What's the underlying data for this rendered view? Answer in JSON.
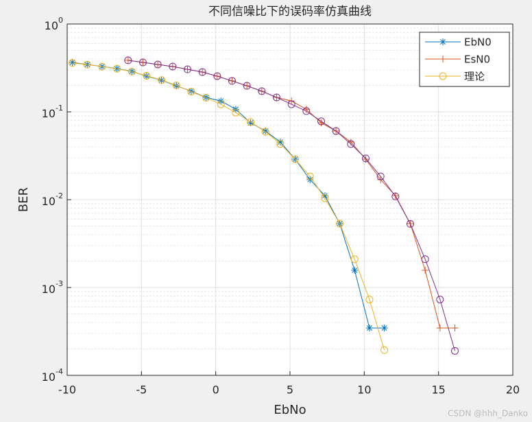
{
  "chart_data": {
    "type": "line",
    "title": "不同信噪比下的误码率仿真曲线",
    "xlabel": "EbNo",
    "ylabel": "BER",
    "xlim": [
      -10,
      20
    ],
    "xticks": [
      -10,
      -5,
      0,
      5,
      10,
      15,
      20
    ],
    "ylim": [
      0.0001,
      1
    ],
    "log_y": true,
    "yticks": [
      {
        "value": 0.0001,
        "label": "10^-4"
      },
      {
        "value": 0.001,
        "label": "10^-3"
      },
      {
        "value": 0.01,
        "label": "10^-2"
      },
      {
        "value": 0.1,
        "label": "10^-1"
      },
      {
        "value": 1,
        "label": "10^0"
      }
    ],
    "grid": true,
    "minor_grid": true,
    "legend": "upper right",
    "series": [
      {
        "name": "EbN0",
        "color": "#0072BD",
        "marker": "star",
        "x": [
          -9.65,
          -8.65,
          -7.65,
          -6.65,
          -5.65,
          -4.65,
          -3.65,
          -2.65,
          -1.65,
          -0.65,
          0.35,
          1.35,
          2.35,
          3.35,
          4.35,
          5.35,
          6.35,
          7.35,
          8.35,
          9.35,
          10.35,
          11.35
        ],
        "values": [
          0.365,
          0.346,
          0.328,
          0.311,
          0.289,
          0.255,
          0.229,
          0.198,
          0.172,
          0.146,
          0.133,
          0.107,
          0.075,
          0.0605,
          0.0453,
          0.0289,
          0.0169,
          0.0111,
          0.00533,
          0.00157,
          0.000346,
          0.000346
        ]
      },
      {
        "name": "EsN0",
        "color": "#D95319",
        "marker": "plus",
        "x": [
          -5.9,
          -4.9,
          -3.9,
          -2.9,
          -1.9,
          -0.9,
          0.1,
          1.1,
          2.1,
          3.1,
          4.1,
          5.1,
          6.1,
          7.1,
          8.1,
          9.1,
          10.1,
          11.1,
          12.1,
          13.1,
          14.1,
          15.1,
          16.1
        ],
        "values": [
          0.386,
          0.365,
          0.346,
          0.328,
          0.305,
          0.284,
          0.255,
          0.225,
          0.198,
          0.172,
          0.146,
          0.133,
          0.107,
          0.075,
          0.0605,
          0.0453,
          0.0289,
          0.0169,
          0.0111,
          0.00533,
          0.00157,
          0.000346,
          0.000346
        ]
      },
      {
        "name": "理论",
        "color": "#EDB120",
        "marker": "circle",
        "x": [
          -9.65,
          -8.65,
          -7.65,
          -6.65,
          -5.65,
          -4.65,
          -3.65,
          -2.65,
          -1.65,
          -0.65,
          0.35,
          1.35,
          2.35,
          3.35,
          4.35,
          5.35,
          6.35,
          7.35,
          8.35,
          9.35,
          10.35,
          11.35
        ],
        "values": [
          0.36,
          0.345,
          0.327,
          0.31,
          0.287,
          0.257,
          0.23,
          0.2,
          0.17,
          0.145,
          0.122,
          0.098,
          0.0765,
          0.0594,
          0.0431,
          0.0289,
          0.0184,
          0.0104,
          0.00533,
          0.0021,
          0.00073,
          0.000194
        ]
      },
      {
        "color": "#7E2F8E",
        "marker": "circle",
        "x": [
          -5.9,
          -4.9,
          -3.9,
          -2.9,
          -1.9,
          -0.9,
          0.1,
          1.1,
          2.1,
          3.1,
          4.1,
          5.1,
          6.1,
          7.1,
          8.1,
          9.1,
          10.1,
          11.1,
          12.1,
          13.1,
          14.1,
          15.1,
          16.1
        ],
        "values": [
          0.386,
          0.365,
          0.346,
          0.328,
          0.305,
          0.284,
          0.255,
          0.225,
          0.198,
          0.172,
          0.146,
          0.122,
          0.102,
          0.078,
          0.0605,
          0.043,
          0.0295,
          0.0184,
          0.0109,
          0.0053,
          0.0021,
          0.00073,
          0.00019
        ]
      }
    ],
    "watermark": "CSDN @hhh_Danko"
  }
}
